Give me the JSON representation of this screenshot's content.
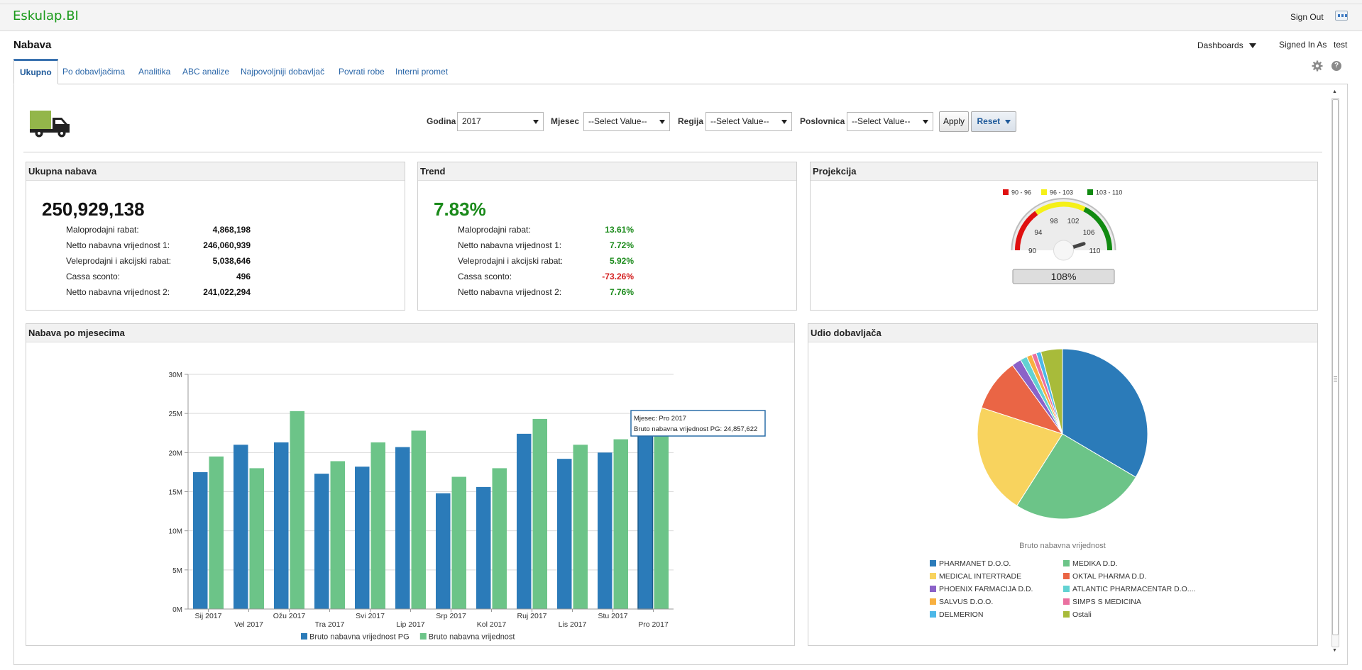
{
  "app": {
    "logo": "Eskulap.BI",
    "sign_out": "Sign Out"
  },
  "header": {
    "title": "Nabava",
    "dashboards_label": "Dashboards",
    "signed_in_label": "Signed In As",
    "signed_in_user": "test",
    "help_glyph": "?"
  },
  "tabs": [
    "Ukupno",
    "Po dobavljačima",
    "Analitika",
    "ABC analize",
    "Najpovoljniji dobavljač",
    "Povrati robe",
    "Interni promet"
  ],
  "prompts": {
    "godina_label": "Godina",
    "godina_value": "2017",
    "mjesec_label": "Mjesec",
    "mjesec_value": "--Select Value--",
    "regija_label": "Regija",
    "regija_value": "--Select Value--",
    "poslovnica_label": "Poslovnica",
    "poslovnica_value": "--Select Value--",
    "apply_label": "Apply",
    "reset_label": "Reset"
  },
  "ukupna_nabava": {
    "title": "Ukupna nabava",
    "total": "250,929,138",
    "rows": [
      {
        "label": "Maloprodajni rabat:",
        "value": "4,868,198"
      },
      {
        "label": "Netto nabavna vrijednost 1:",
        "value": "246,060,939"
      },
      {
        "label": "Veleprodajni i akcijski rabat:",
        "value": "5,038,646"
      },
      {
        "label": "Cassa sconto:",
        "value": "496"
      },
      {
        "label": "Netto nabavna vrijednost 2:",
        "value": "241,022,294"
      }
    ]
  },
  "trend": {
    "title": "Trend",
    "total": "7.83%",
    "positive_color": "#1a8a1a",
    "negative_color": "#d42020",
    "rows": [
      {
        "label": "Maloprodajni rabat:",
        "value": "13.61%",
        "negative": false
      },
      {
        "label": "Netto nabavna vrijednost 1:",
        "value": "7.72%",
        "negative": false
      },
      {
        "label": "Veleprodajni i akcijski rabat:",
        "value": "5.92%",
        "negative": false
      },
      {
        "label": "Cassa sconto:",
        "value": "-73.26%",
        "negative": true
      },
      {
        "label": "Netto nabavna vrijednost 2:",
        "value": "7.76%",
        "negative": false
      }
    ]
  },
  "projekcija": {
    "title": "Projekcija",
    "legend": [
      {
        "label": "90 - 96",
        "color": "#e01010"
      },
      {
        "label": "96 - 103",
        "color": "#f5f018"
      },
      {
        "label": "103 - 110",
        "color": "#118a11"
      }
    ],
    "gauge_min": 90,
    "gauge_max": 110,
    "ticks": [
      "90",
      "94",
      "98",
      "102",
      "106",
      "110"
    ],
    "value": 108,
    "value_label": "108%"
  },
  "chart_data": [
    {
      "type": "bar",
      "title": "Nabava po mjesecima",
      "categories": [
        "Sij 2017",
        "Vel 2017",
        "Ožu 2017",
        "Tra 2017",
        "Svi 2017",
        "Lip 2017",
        "Srp 2017",
        "Kol 2017",
        "Ruj 2017",
        "Lis 2017",
        "Stu 2017",
        "Pro 2017"
      ],
      "series": [
        {
          "name": "Bruto nabavna vrijednost PG",
          "color": "#2b7bb9",
          "values": [
            17.5,
            21.0,
            21.3,
            17.3,
            18.2,
            20.7,
            14.8,
            15.6,
            22.4,
            19.2,
            20.0,
            24.857622
          ]
        },
        {
          "name": "Bruto nabavna vrijednost",
          "color": "#6cc488",
          "values": [
            19.5,
            18.0,
            25.3,
            18.9,
            21.3,
            22.8,
            16.9,
            18.0,
            24.3,
            21.0,
            21.7,
            23.0
          ]
        }
      ],
      "units": "M",
      "ylim": [
        0,
        30
      ],
      "yticks": [
        "0M",
        "5M",
        "10M",
        "15M",
        "20M",
        "25M",
        "30M"
      ],
      "grid": true,
      "legend_position": "bottom",
      "tooltip": {
        "line1": "Mjesec: Pro 2017",
        "line2": "Bruto nabavna vrijednost PG: 24,857,622"
      }
    },
    {
      "type": "pie",
      "title": "Udio dobavljača",
      "caption": "Bruto nabavna vrijednost",
      "legend_position": "bottom",
      "slices": [
        {
          "label": "PHARMANET D.O.O.",
          "value": 33.5,
          "color": "#2b7bb9"
        },
        {
          "label": "MEDIKA D.D.",
          "value": 25.5,
          "color": "#6cc488"
        },
        {
          "label": "MEDICAL INTERTRADE",
          "value": 21.0,
          "color": "#f8d35e"
        },
        {
          "label": "OKTAL PHARMA D.D.",
          "value": 10.0,
          "color": "#ea6545"
        },
        {
          "label": "PHOENIX FARMACIJA D.D.",
          "value": 1.8,
          "color": "#8b62c8"
        },
        {
          "label": "ATLANTIC PHARMACENTAR D.O....",
          "value": 1.3,
          "color": "#62d2d2"
        },
        {
          "label": "SALVUS D.O.O.",
          "value": 1.0,
          "color": "#f8b040"
        },
        {
          "label": "SIMPS S MEDICINA",
          "value": 0.9,
          "color": "#ea70a0"
        },
        {
          "label": "DELMERION",
          "value": 0.9,
          "color": "#4db8e8"
        },
        {
          "label": "Ostali",
          "value": 4.1,
          "color": "#a8bb3a"
        }
      ]
    }
  ]
}
